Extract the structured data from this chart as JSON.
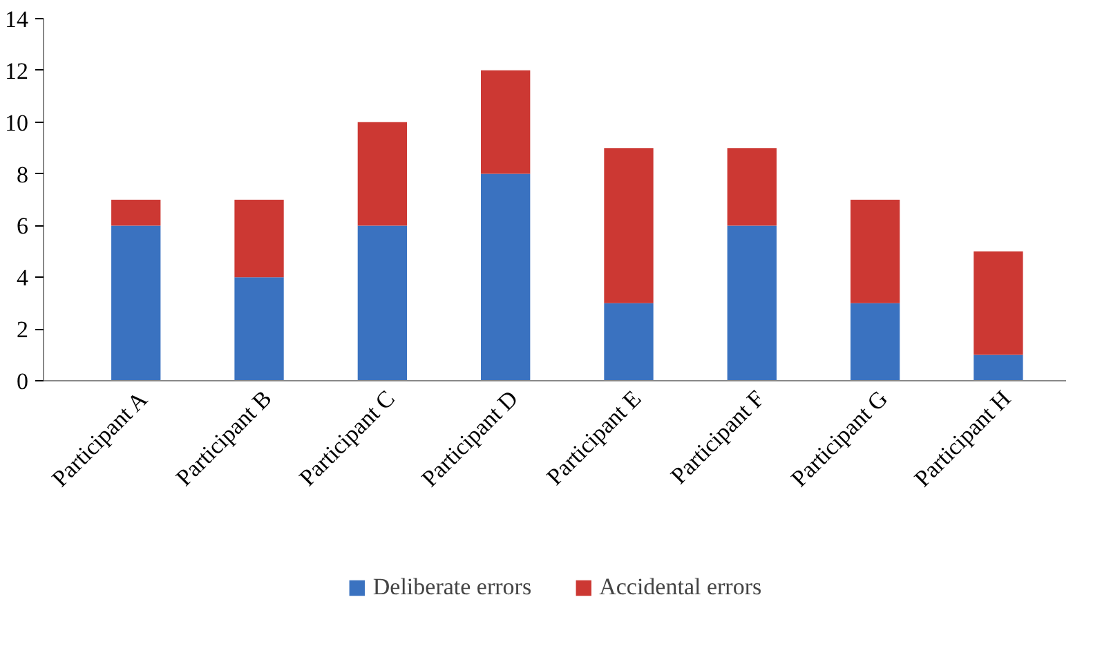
{
  "chart_data": {
    "type": "bar",
    "stacked": true,
    "categories": [
      "Participant A",
      "Participant B",
      "Participant C",
      "Participant D",
      "Participant E",
      "Participant F",
      "Participant G",
      "Participant H"
    ],
    "series": [
      {
        "name": "Deliberate errors",
        "color": "#3a72c0",
        "values": [
          6,
          4,
          6,
          8,
          3,
          6,
          3,
          1
        ]
      },
      {
        "name": "Accidental errors",
        "color": "#cc3833",
        "values": [
          1,
          3,
          4,
          4,
          6,
          3,
          4,
          4
        ]
      }
    ],
    "ylim": [
      0,
      14
    ],
    "yticks": [
      0,
      2,
      4,
      6,
      8,
      10,
      12,
      14
    ],
    "grid": false,
    "legend": "bottom"
  }
}
